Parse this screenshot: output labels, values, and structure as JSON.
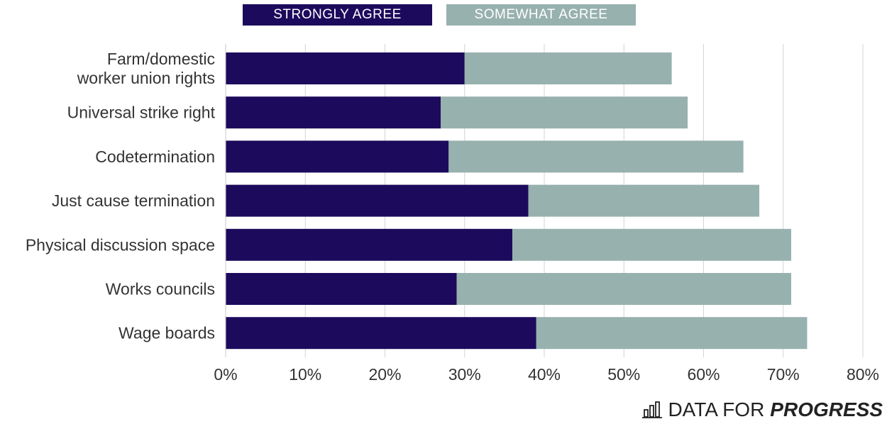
{
  "chart_data": {
    "type": "bar",
    "orientation": "horizontal",
    "stacked": true,
    "categories": [
      "Farm/domestic worker union rights",
      "Universal strike right",
      "Codetermination",
      "Just cause termination",
      "Physical discussion space",
      "Works councils",
      "Wage boards"
    ],
    "category_lines": [
      [
        "Farm/domestic",
        "worker union rights"
      ],
      [
        "Universal strike right"
      ],
      [
        "Codetermination"
      ],
      [
        "Just cause termination"
      ],
      [
        "Physical discussion space"
      ],
      [
        "Works councils"
      ],
      [
        "Wage boards"
      ]
    ],
    "series": [
      {
        "name": "STRONGLY AGREE",
        "color": "#1c0a5c",
        "values": [
          30,
          27,
          28,
          38,
          36,
          29,
          39
        ]
      },
      {
        "name": "SOMEWHAT AGREE",
        "color": "#97b1ae",
        "values": [
          26,
          31,
          37,
          29,
          35,
          42,
          34
        ]
      }
    ],
    "xlim": [
      0,
      80
    ],
    "xticks": [
      0,
      10,
      20,
      30,
      40,
      50,
      60,
      70,
      80
    ],
    "xtick_labels": [
      "0%",
      "10%",
      "20%",
      "30%",
      "40%",
      "50%",
      "60%",
      "70%",
      "80%"
    ],
    "grid": true,
    "legend_position": "top-center",
    "title": "",
    "xlabel": "",
    "ylabel": ""
  },
  "branding": {
    "light_text": "DATA FOR",
    "bold_text": "PROGRESS",
    "icon": "bar-chart-icon"
  }
}
